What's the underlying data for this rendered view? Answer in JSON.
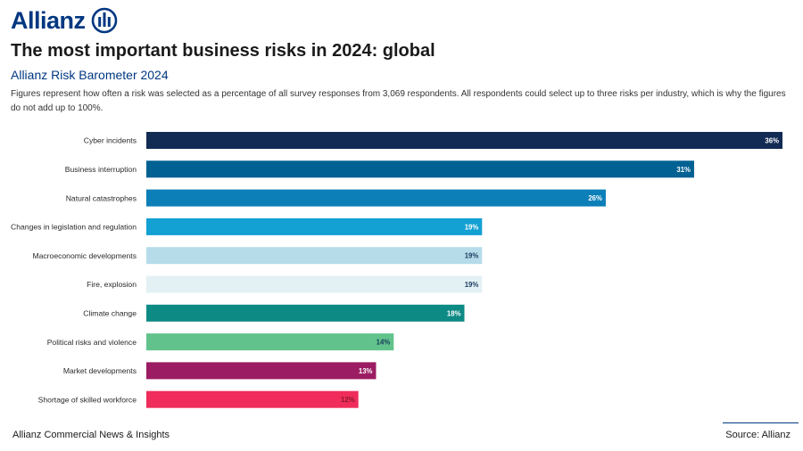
{
  "header": {
    "logo_text": "Allianz",
    "title": "The most important business risks in 2024: global",
    "subtitle": "Allianz Risk Barometer 2024",
    "note": "Figures represent how often a risk was selected as a percentage of all survey responses from 3,069 respondents. All respondents could select up to three risks per industry, which is why the figures do not add up to 100%."
  },
  "footer": {
    "left": "Allianz Commercial News & Insights",
    "right": "Source: Allianz"
  },
  "colors": {
    "brand": "#003781",
    "bars": [
      "#122b54",
      "#006192",
      "#0c7fb8",
      "#13a0d3",
      "#b6dcea",
      "#e3f1f5",
      "#0e8a84",
      "#61c38b",
      "#9b1c62",
      "#ef2c5b"
    ],
    "label_colors": [
      "#ffffff",
      "#ffffff",
      "#ffffff",
      "#ffffff",
      "#1a3a5c",
      "#1a3a5c",
      "#ffffff",
      "#1a3a5c",
      "#ffffff",
      "#8a1a2a"
    ]
  },
  "chart_data": {
    "type": "bar",
    "orientation": "horizontal",
    "title": "The most important business risks in 2024: global",
    "categories": [
      "Cyber incidents",
      "Business interruption",
      "Natural catastrophes",
      "Changes in legislation and regulation",
      "Macroeconomic developments",
      "Fire, explosion",
      "Climate change",
      "Political risks and violence",
      "Market developments",
      "Shortage of skilled workforce"
    ],
    "values": [
      36,
      31,
      26,
      19,
      19,
      19,
      18,
      14,
      13,
      12
    ],
    "value_labels": [
      "36%",
      "31%",
      "26%",
      "19%",
      "19%",
      "19%",
      "18%",
      "14%",
      "13%",
      "12%"
    ],
    "xlim": [
      0,
      36
    ],
    "unit": "%",
    "grid": false
  }
}
